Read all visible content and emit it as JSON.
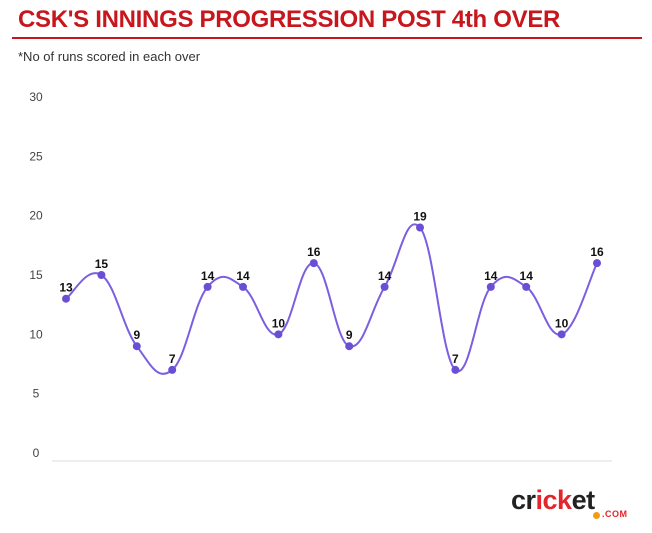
{
  "header": {
    "title": "CSK'S INNINGS PROGRESSION POST 4th OVER",
    "subtitle": "*No of runs scored in each over"
  },
  "brand": {
    "logo_text_dark_1": "cr",
    "logo_text_red": "ick",
    "logo_text_dark_2": "et",
    "logo_sub": ".COM"
  },
  "colors": {
    "title": "#c8161d",
    "line": "#7b5fe0",
    "point": "#6a4fd6",
    "grid": "#dddddd",
    "axis_text": "#444444"
  },
  "chart_data": {
    "type": "line",
    "title": "CSK'S INNINGS PROGRESSION POST 4th OVER",
    "subtitle": "*No of runs scored in each over",
    "xlabel": "",
    "ylabel": "",
    "ylim": [
      0,
      30
    ],
    "yticks": [
      0,
      5,
      10,
      15,
      20,
      25,
      30
    ],
    "grid": false,
    "legend": "none",
    "series": [
      {
        "values": [
          13,
          15,
          9,
          7,
          14,
          14,
          10,
          16,
          9,
          14,
          19,
          7,
          14,
          14,
          10,
          16
        ]
      }
    ]
  }
}
